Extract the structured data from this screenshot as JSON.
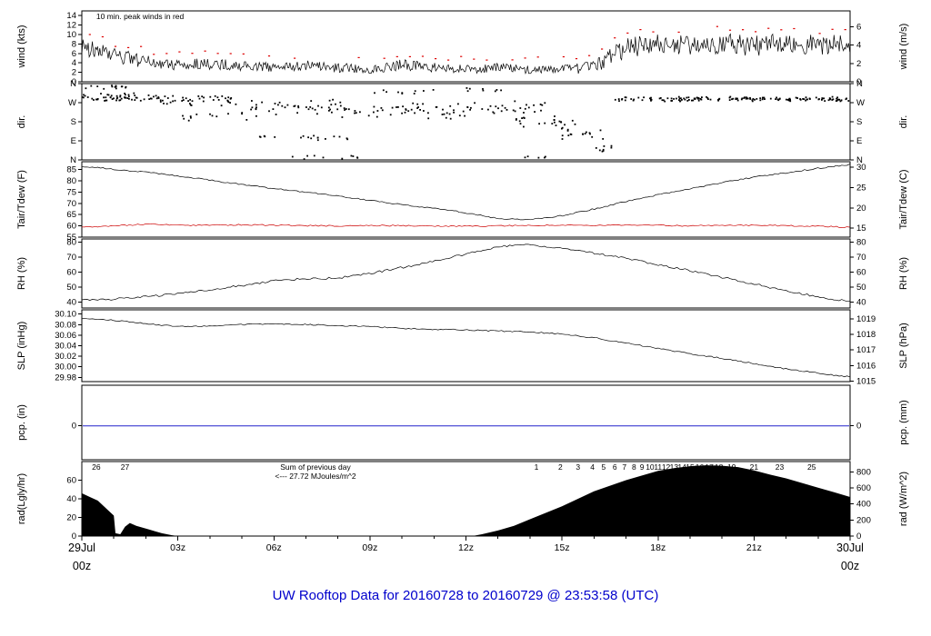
{
  "title": "UW Rooftop Data for 20160728  to  20160729 @ 23:53:58  (UTC)",
  "colors": {
    "trace": "#000000",
    "peak": "#dd0000",
    "tdew": "#cc0000",
    "pcp_line": "#2222cc",
    "annotation": "#b000b0",
    "date": "#cc2020",
    "title": "#0000cc",
    "note": "#cc0000"
  },
  "chart_data": {
    "type": "multi-panel meteogram time series",
    "x_axis": {
      "range_hours": [
        0,
        24
      ],
      "hour_labels": [
        {
          "h": 3,
          "t": "03z"
        },
        {
          "h": 6,
          "t": "06z"
        },
        {
          "h": 9,
          "t": "09z"
        },
        {
          "h": 12,
          "t": "12z"
        },
        {
          "h": 15,
          "t": "15z"
        },
        {
          "h": 18,
          "t": "18z"
        },
        {
          "h": 21,
          "t": "21z"
        }
      ],
      "start": {
        "line1": "29Jul",
        "line2": "00z"
      },
      "end": {
        "line1": "30Jul",
        "line2": "00z"
      }
    },
    "panels": [
      {
        "id": "wind",
        "left_label": "wind (kts)",
        "right_label": "wind (m/s)",
        "range": [
          0,
          15
        ],
        "left_ticks": [
          [
            0,
            "0"
          ],
          [
            2,
            "2"
          ],
          [
            4,
            "4"
          ],
          [
            6,
            "6"
          ],
          [
            8,
            "8"
          ],
          [
            10,
            "10"
          ],
          [
            12,
            "12"
          ],
          [
            14,
            "14"
          ]
        ],
        "right_range": [
          0,
          7.72
        ],
        "right_ticks": [
          [
            0,
            "0"
          ],
          [
            2,
            "2"
          ],
          [
            4,
            "4"
          ],
          [
            6,
            "6"
          ]
        ],
        "note": {
          "text": "10 min. peak winds in red",
          "h": 0.45
        },
        "series": {
          "type": "noisy-line",
          "step": 0.033,
          "min": 0.15,
          "mean": [
            7.5,
            5.5,
            4.2,
            3.6,
            3.8,
            3.4,
            3.0,
            3.4,
            3.0,
            2.6,
            3.6,
            3.0,
            2.6,
            3.0,
            2.6,
            2.6,
            3.0,
            7.2,
            8.0,
            7.6,
            8.2,
            7.6,
            8.2,
            7.8,
            8.2
          ],
          "noise": [
            2.0,
            1.8,
            1.4,
            1.2,
            1.2,
            1.1,
            1.0,
            1.1,
            1.0,
            0.9,
            1.2,
            1.0,
            0.9,
            1.0,
            0.9,
            0.9,
            1.4,
            2.2,
            2.2,
            2.2,
            2.2,
            2.2,
            2.2,
            2.2,
            2.2
          ]
        },
        "peaks": {
          "enabled": true,
          "interval_hours": 0.4
        }
      },
      {
        "id": "dir",
        "left_label": "dir.",
        "right_label": "dir.",
        "range": [
          0,
          360
        ],
        "left_ticks": [
          [
            0,
            "N"
          ],
          [
            90,
            "E"
          ],
          [
            180,
            "S"
          ],
          [
            270,
            "W"
          ],
          [
            360,
            "N"
          ]
        ],
        "right_range": [
          0,
          360
        ],
        "right_ticks": [
          [
            0,
            "N"
          ],
          [
            90,
            "E"
          ],
          [
            180,
            "S"
          ],
          [
            270,
            "W"
          ],
          [
            360,
            "N"
          ]
        ],
        "clusters": [
          [
            0,
            2.5,
            295,
            25,
            60
          ],
          [
            0,
            1.5,
            345,
            12,
            14
          ],
          [
            2.5,
            5,
            280,
            30,
            40
          ],
          [
            3,
            5.5,
            210,
            25,
            14
          ],
          [
            5,
            8,
            250,
            40,
            40
          ],
          [
            5.5,
            8.5,
            105,
            25,
            18
          ],
          [
            6.3,
            8.8,
            15,
            12,
            10
          ],
          [
            8,
            12,
            235,
            45,
            55
          ],
          [
            9,
            11,
            320,
            18,
            10
          ],
          [
            12,
            14.5,
            250,
            40,
            30
          ],
          [
            12,
            13.2,
            330,
            15,
            8
          ],
          [
            13.5,
            15.5,
            175,
            50,
            24
          ],
          [
            13.8,
            14.6,
            12,
            8,
            5
          ],
          [
            15,
            16.3,
            120,
            40,
            16
          ],
          [
            16,
            16.6,
            60,
            30,
            8
          ],
          [
            16.5,
            24,
            287,
            13,
            150
          ]
        ]
      },
      {
        "id": "temp",
        "left_label": "Tair/Tdew (F)",
        "right_label": "Tair/Tdew (C)",
        "range": [
          55,
          88.5
        ],
        "left_ticks": [
          [
            55,
            "55"
          ],
          [
            60,
            "60"
          ],
          [
            65,
            "65"
          ],
          [
            70,
            "70"
          ],
          [
            75,
            "75"
          ],
          [
            80,
            "80"
          ],
          [
            85,
            "85"
          ]
        ],
        "right_range": [
          12.78,
          31.39
        ],
        "right_ticks": [
          [
            15,
            "15"
          ],
          [
            20,
            "20"
          ],
          [
            25,
            "25"
          ],
          [
            30,
            "30"
          ]
        ],
        "series2": [
          {
            "name": "tair",
            "color": "#000000",
            "step": 0.083,
            "noise_amp": 0.3,
            "mean": [
              86.5,
              85.2,
              83.8,
              82.2,
              80.3,
              78.4,
              76.6,
              75.0,
              73.2,
              71.3,
              69.5,
              67.8,
              65.8,
              63.2,
              62.8,
              64.5,
              67.5,
              70.8,
              73.8,
              76.5,
              79.2,
              81.6,
              83.6,
              85.6,
              87.3
            ]
          },
          {
            "name": "tdew",
            "color": "#cc0000",
            "step": 0.083,
            "noise_amp": 0.3,
            "mean": [
              59.6,
              59.9,
              60.8,
              60.4,
              60.2,
              60.5,
              60.3,
              60.1,
              60.0,
              60.2,
              60.1,
              60.0,
              59.9,
              60.0,
              60.2,
              60.3,
              60.2,
              60.4,
              60.3,
              60.0,
              60.2,
              60.3,
              60.1,
              59.8,
              59.4
            ]
          }
        ]
      },
      {
        "id": "rh",
        "left_label": "RH (%)",
        "right_label": "RH (%)",
        "range": [
          36,
          82
        ],
        "left_ticks": [
          [
            40,
            "40"
          ],
          [
            50,
            "50"
          ],
          [
            60,
            "60"
          ],
          [
            70,
            "70"
          ],
          [
            80,
            "80"
          ]
        ],
        "right_range": [
          36,
          82
        ],
        "right_ticks": [
          [
            40,
            "40"
          ],
          [
            50,
            "50"
          ],
          [
            60,
            "60"
          ],
          [
            70,
            "70"
          ],
          [
            80,
            "80"
          ]
        ],
        "series": {
          "type": "noisy-line",
          "step": 0.083,
          "min": 0,
          "mean": [
            41,
            42,
            43.5,
            45.5,
            48,
            51,
            54,
            55.5,
            56,
            59,
            63,
            67,
            72,
            77,
            78,
            75.5,
            72.5,
            69,
            65,
            61,
            56.5,
            52,
            47.5,
            43.5,
            40.5
          ],
          "noise": 0.7
        }
      },
      {
        "id": "slp",
        "left_label": "SLP (inHg)",
        "right_label": "SLP (hPa)",
        "range": [
          29.972,
          30.108
        ],
        "left_ticks": [
          [
            29.98,
            "29.98"
          ],
          [
            30.0,
            "30.00"
          ],
          [
            30.02,
            "30.02"
          ],
          [
            30.04,
            "30.04"
          ],
          [
            30.06,
            "30.06"
          ],
          [
            30.08,
            "30.08"
          ],
          [
            30.1,
            "30.10"
          ]
        ],
        "right_range": [
          1014.97,
          1019.58
        ],
        "right_ticks": [
          [
            1015,
            "1015"
          ],
          [
            1016,
            "1016"
          ],
          [
            1017,
            "1017"
          ],
          [
            1018,
            "1018"
          ],
          [
            1019,
            "1019"
          ]
        ],
        "series": {
          "type": "noisy-line",
          "step": 0.083,
          "min": 0,
          "mean": [
            30.092,
            30.088,
            30.082,
            30.076,
            30.077,
            30.08,
            30.082,
            30.08,
            30.078,
            30.076,
            30.073,
            30.071,
            30.07,
            30.068,
            30.066,
            30.062,
            30.055,
            30.045,
            30.035,
            30.025,
            30.016,
            30.006,
            29.996,
            29.988,
            29.981
          ],
          "noise": 0.0012
        }
      },
      {
        "id": "pcp",
        "left_label": "pcp. (in)",
        "right_label": "pcp. (mm)",
        "range": [
          -0.075,
          0.09
        ],
        "left_ticks": [
          [
            0,
            "0"
          ]
        ],
        "right_range": [
          -1.905,
          2.286
        ],
        "right_ticks": [
          [
            0,
            "0"
          ]
        ],
        "flatline": {
          "value": 0
        }
      },
      {
        "id": "rad",
        "left_label": "rad(Lgly/hr)",
        "right_label": "rad (W/m^2)",
        "range": [
          0,
          80
        ],
        "left_ticks": [
          [
            0,
            "0"
          ],
          [
            20,
            "20"
          ],
          [
            40,
            "40"
          ],
          [
            60,
            "60"
          ]
        ],
        "right_range": [
          0,
          930
        ],
        "right_ticks": [
          [
            0,
            "0"
          ],
          [
            200,
            "200"
          ],
          [
            400,
            "400"
          ],
          [
            600,
            "600"
          ],
          [
            800,
            "800"
          ]
        ],
        "area": {
          "points": [
            [
              0,
              46
            ],
            [
              0.25,
              42
            ],
            [
              0.5,
              38
            ],
            [
              0.75,
              30
            ],
            [
              1.0,
              22
            ],
            [
              1.05,
              3
            ],
            [
              1.2,
              2
            ],
            [
              1.35,
              10
            ],
            [
              1.5,
              14
            ],
            [
              1.7,
              11
            ],
            [
              1.9,
              9
            ],
            [
              2.1,
              7
            ],
            [
              2.3,
              5
            ],
            [
              2.5,
              3
            ],
            [
              2.8,
              1
            ],
            [
              3.0,
              0
            ],
            [
              12.2,
              0
            ],
            [
              12.5,
              2
            ],
            [
              13,
              6
            ],
            [
              13.5,
              11
            ],
            [
              14,
              18
            ],
            [
              14.5,
              25
            ],
            [
              15,
              32
            ],
            [
              15.5,
              40
            ],
            [
              16,
              48
            ],
            [
              16.5,
              54
            ],
            [
              17,
              60
            ],
            [
              17.5,
              65
            ],
            [
              18,
              70
            ],
            [
              18.5,
              73
            ],
            [
              19,
              75
            ],
            [
              19.5,
              76
            ],
            [
              20,
              75.5
            ],
            [
              20.5,
              74
            ],
            [
              21,
              70.5
            ],
            [
              21.5,
              66
            ],
            [
              22,
              62
            ],
            [
              22.5,
              57
            ],
            [
              23,
              52
            ],
            [
              23.5,
              47
            ],
            [
              24,
              42
            ]
          ]
        },
        "annotations": {
          "sum_line1": "Sum of previous day",
          "sum_line2": "<--- 27.72 MJoules/m^2",
          "sum_h": 7.3,
          "numbers": [
            {
              "h": 0.45,
              "t": "26"
            },
            {
              "h": 1.35,
              "t": "27"
            },
            {
              "h": 14.2,
              "t": "1"
            },
            {
              "h": 14.95,
              "t": "2"
            },
            {
              "h": 15.5,
              "t": "3"
            },
            {
              "h": 15.95,
              "t": "4"
            },
            {
              "h": 16.3,
              "t": "5"
            },
            {
              "h": 16.65,
              "t": "6"
            },
            {
              "h": 16.95,
              "t": "7"
            },
            {
              "h": 17.25,
              "t": "8"
            },
            {
              "h": 17.5,
              "t": "9"
            },
            {
              "h": 17.75,
              "t": "10"
            },
            {
              "h": 18.0,
              "t": "11"
            },
            {
              "h": 18.25,
              "t": "12"
            },
            {
              "h": 18.5,
              "t": "13"
            },
            {
              "h": 18.75,
              "t": "14"
            },
            {
              "h": 19.0,
              "t": "15"
            },
            {
              "h": 19.3,
              "t": "16"
            },
            {
              "h": 19.6,
              "t": "17"
            },
            {
              "h": 19.9,
              "t": "18"
            },
            {
              "h": 20.3,
              "t": "19"
            },
            {
              "h": 21.0,
              "t": "21"
            },
            {
              "h": 21.8,
              "t": "23"
            },
            {
              "h": 22.8,
              "t": "25"
            }
          ]
        }
      }
    ]
  }
}
